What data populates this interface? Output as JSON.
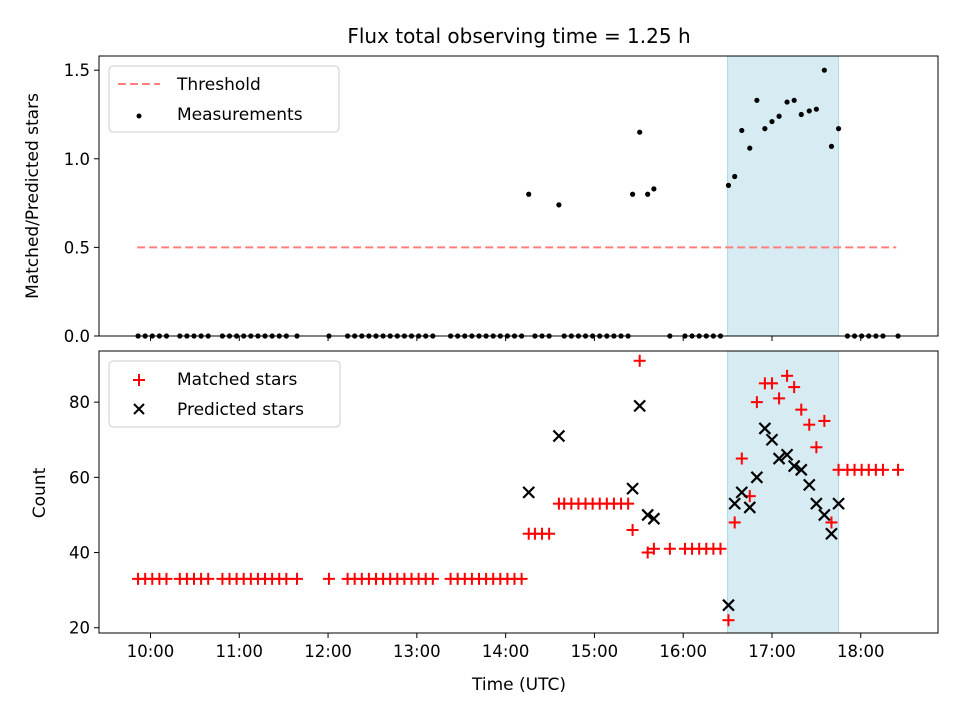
{
  "chart_data": [
    {
      "type": "scatter",
      "title": "Flux total observing time = 1.25 h",
      "xlabel": "",
      "ylabel": "Matched/Predicted stars",
      "xlim": [
        9.42,
        18.87
      ],
      "ylim": [
        0,
        1.58
      ],
      "yticks": [
        "0.0",
        "0.5",
        "1.0",
        "1.5"
      ],
      "highlight_span": {
        "x_start": 16.5,
        "x_end": 17.75,
        "color": "#add8e6"
      },
      "legend": [
        {
          "label": "Threshold",
          "marker": "dashed-line",
          "color": "#ff7f7f"
        },
        {
          "label": "Measurements",
          "marker": "dot",
          "color": "#000000"
        }
      ],
      "series": [
        {
          "name": "Threshold",
          "kind": "line",
          "color": "#ff7f7f",
          "x": [
            9.85,
            18.4
          ],
          "y": [
            0.5,
            0.5
          ]
        },
        {
          "name": "Measurements",
          "kind": "scatter",
          "color": "#000000",
          "x": [
            9.86,
            9.94,
            10.02,
            10.1,
            10.18,
            10.33,
            10.41,
            10.49,
            10.57,
            10.65,
            10.81,
            10.89,
            10.97,
            11.05,
            11.13,
            11.21,
            11.29,
            11.37,
            11.45,
            11.53,
            11.65,
            12.01,
            12.22,
            12.3,
            12.38,
            12.46,
            12.54,
            12.62,
            12.7,
            12.78,
            12.86,
            12.94,
            13.02,
            13.1,
            13.18,
            13.38,
            13.46,
            13.54,
            13.62,
            13.7,
            13.78,
            13.86,
            13.94,
            14.02,
            14.1,
            14.18,
            14.26,
            14.33,
            14.41,
            14.49,
            14.6,
            14.66,
            14.74,
            14.82,
            14.9,
            14.98,
            15.06,
            15.14,
            15.22,
            15.3,
            15.38,
            15.43,
            15.51,
            15.6,
            15.67,
            15.85,
            16.02,
            16.1,
            16.18,
            16.26,
            16.34,
            16.42,
            16.51,
            16.58,
            16.66,
            16.75,
            16.83,
            16.92,
            17.0,
            17.08,
            17.17,
            17.25,
            17.33,
            17.42,
            17.5,
            17.59,
            17.67,
            17.75,
            17.85,
            17.93,
            18.01,
            18.09,
            18.17,
            18.25,
            18.42
          ],
          "y": [
            0,
            0,
            0,
            0,
            0,
            0,
            0,
            0,
            0,
            0,
            0,
            0,
            0,
            0,
            0,
            0,
            0,
            0,
            0,
            0,
            0,
            0,
            0,
            0,
            0,
            0,
            0,
            0,
            0,
            0,
            0,
            0,
            0,
            0,
            0,
            0,
            0,
            0,
            0,
            0,
            0,
            0,
            0,
            0,
            0,
            0,
            0.8,
            0,
            0,
            0,
            0.74,
            0,
            0,
            0,
            0,
            0,
            0,
            0,
            0,
            0,
            0,
            0.8,
            1.15,
            0.8,
            0.83,
            0,
            0,
            0,
            0,
            0,
            0,
            0,
            0.85,
            0.9,
            1.16,
            1.06,
            1.33,
            1.17,
            1.21,
            1.24,
            1.32,
            1.33,
            1.25,
            1.27,
            1.28,
            1.5,
            1.07,
            1.17,
            0,
            0,
            0,
            0,
            0,
            0,
            0
          ]
        }
      ]
    },
    {
      "type": "scatter",
      "title": "",
      "xlabel": "Time (UTC)",
      "ylabel": "Count",
      "xlim": [
        9.42,
        18.87
      ],
      "ylim": [
        18.6,
        93.6
      ],
      "yticks": [
        "20",
        "40",
        "60",
        "80"
      ],
      "xticks": [
        "10:00",
        "11:00",
        "12:00",
        "13:00",
        "14:00",
        "15:00",
        "16:00",
        "17:00",
        "18:00"
      ],
      "highlight_span": {
        "x_start": 16.5,
        "x_end": 17.75,
        "color": "#add8e6"
      },
      "legend": [
        {
          "label": "Matched stars",
          "marker": "plus",
          "color": "#ff0000"
        },
        {
          "label": "Predicted stars",
          "marker": "x",
          "color": "#000000"
        }
      ],
      "series": [
        {
          "name": "Matched stars",
          "kind": "scatter",
          "marker": "plus",
          "color": "#ff0000",
          "x": [
            9.86,
            9.94,
            10.02,
            10.1,
            10.18,
            10.33,
            10.41,
            10.49,
            10.57,
            10.65,
            10.81,
            10.89,
            10.97,
            11.05,
            11.13,
            11.21,
            11.29,
            11.37,
            11.45,
            11.53,
            11.65,
            12.01,
            12.22,
            12.3,
            12.38,
            12.46,
            12.54,
            12.62,
            12.7,
            12.78,
            12.86,
            12.94,
            13.02,
            13.1,
            13.18,
            13.38,
            13.46,
            13.54,
            13.62,
            13.7,
            13.78,
            13.86,
            13.94,
            14.02,
            14.1,
            14.18,
            14.26,
            14.33,
            14.41,
            14.49,
            14.6,
            14.66,
            14.74,
            14.82,
            14.9,
            14.98,
            15.06,
            15.14,
            15.22,
            15.3,
            15.38,
            15.43,
            15.51,
            15.6,
            15.67,
            15.85,
            16.02,
            16.1,
            16.18,
            16.26,
            16.34,
            16.42,
            16.51,
            16.58,
            16.66,
            16.75,
            16.83,
            16.92,
            17.0,
            17.08,
            17.17,
            17.25,
            17.33,
            17.42,
            17.5,
            17.59,
            17.67,
            17.75,
            17.85,
            17.93,
            18.01,
            18.09,
            18.17,
            18.25,
            18.42
          ],
          "y": [
            33,
            33,
            33,
            33,
            33,
            33,
            33,
            33,
            33,
            33,
            33,
            33,
            33,
            33,
            33,
            33,
            33,
            33,
            33,
            33,
            33,
            33,
            33,
            33,
            33,
            33,
            33,
            33,
            33,
            33,
            33,
            33,
            33,
            33,
            33,
            33,
            33,
            33,
            33,
            33,
            33,
            33,
            33,
            33,
            33,
            33,
            45,
            45,
            45,
            45,
            53,
            53,
            53,
            53,
            53,
            53,
            53,
            53,
            53,
            53,
            53,
            46,
            91,
            40,
            41,
            41,
            41,
            41,
            41,
            41,
            41,
            41,
            22,
            48,
            65,
            55,
            80,
            85,
            85,
            81,
            87,
            84,
            78,
            74,
            68,
            75,
            48,
            62,
            62,
            62,
            62,
            62,
            62,
            62,
            62
          ]
        },
        {
          "name": "Predicted stars",
          "kind": "scatter",
          "marker": "x",
          "color": "#000000",
          "x": [
            14.26,
            14.6,
            15.43,
            15.51,
            15.6,
            15.67,
            16.51,
            16.58,
            16.66,
            16.75,
            16.83,
            16.92,
            17.0,
            17.08,
            17.17,
            17.25,
            17.33,
            17.42,
            17.5,
            17.59,
            17.67,
            17.75
          ],
          "y": [
            56,
            71,
            57,
            79,
            50,
            49,
            26,
            53,
            56,
            52,
            60,
            73,
            70,
            65,
            66,
            63,
            62,
            58,
            53,
            50,
            45,
            53
          ]
        }
      ]
    }
  ]
}
